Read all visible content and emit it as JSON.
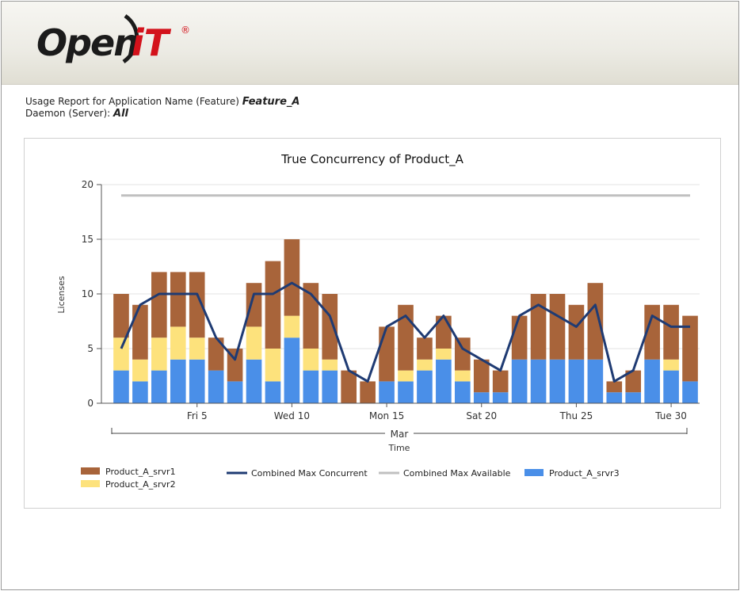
{
  "header": {
    "logo_text_left": "Open",
    "logo_text_right": "iT",
    "logo_mark": "®"
  },
  "report": {
    "usage_label": "Usage Report for Application Name (Feature)",
    "feature_value": "Feature_A",
    "daemon_label": "Daemon (Server):",
    "daemon_value": "All"
  },
  "chart_data": {
    "type": "bar",
    "stacked": true,
    "title": "True Concurrency of Product_A",
    "xlabel": "Time",
    "xlabel_group": "Mar",
    "ylabel": "Licenses",
    "ylim": [
      0,
      20
    ],
    "yticks": [
      0,
      5,
      10,
      15,
      20
    ],
    "grid": true,
    "legend_position": "bottom",
    "x_tick_labels": [
      "Fri 5",
      "Wed 10",
      "Mon 15",
      "Sat 20",
      "Thu 25",
      "Tue 30"
    ],
    "x_tick_positions": [
      4,
      9,
      14,
      19,
      24,
      29
    ],
    "categories": [
      1,
      2,
      3,
      4,
      5,
      6,
      7,
      8,
      9,
      10,
      11,
      12,
      13,
      14,
      15,
      16,
      17,
      18,
      19,
      20,
      21,
      22,
      23,
      24,
      25,
      26,
      27,
      28,
      29,
      30,
      31
    ],
    "series": [
      {
        "name": "Product_A_srvr3",
        "color": "#4a8fe8",
        "kind": "bar",
        "values": [
          3,
          2,
          3,
          4,
          4,
          3,
          2,
          4,
          2,
          6,
          3,
          3,
          0,
          0,
          2,
          2,
          3,
          4,
          2,
          1,
          1,
          4,
          4,
          4,
          4,
          4,
          1,
          1,
          4,
          3,
          2
        ]
      },
      {
        "name": "Product_A_srvr2",
        "color": "#fde27c",
        "kind": "bar",
        "values": [
          3,
          2,
          3,
          3,
          2,
          0,
          0,
          3,
          3,
          2,
          2,
          1,
          0,
          0,
          0,
          1,
          1,
          1,
          1,
          0,
          0,
          0,
          0,
          0,
          0,
          0,
          0,
          0,
          0,
          1,
          0
        ]
      },
      {
        "name": "Product_A_srvr1",
        "color": "#a8643a",
        "kind": "bar",
        "values": [
          4,
          5,
          6,
          5,
          6,
          3,
          3,
          4,
          8,
          7,
          6,
          6,
          3,
          2,
          5,
          6,
          2,
          3,
          3,
          3,
          2,
          4,
          6,
          6,
          5,
          7,
          1,
          2,
          5,
          5,
          6
        ]
      },
      {
        "name": "Combined Max Concurrent",
        "color": "#1f3b73",
        "kind": "line",
        "values": [
          5,
          9,
          10,
          10,
          10,
          6,
          4,
          10,
          10,
          11,
          10,
          8,
          3,
          2,
          7,
          8,
          6,
          8,
          5,
          4,
          3,
          8,
          9,
          8,
          7,
          9,
          2,
          3,
          8,
          7,
          7
        ]
      },
      {
        "name": "Combined Max Available",
        "color": "#c0c0c0",
        "kind": "line",
        "values": [
          19,
          19,
          19,
          19,
          19,
          19,
          19,
          19,
          19,
          19,
          19,
          19,
          19,
          19,
          19,
          19,
          19,
          19,
          19,
          19,
          19,
          19,
          19,
          19,
          19,
          19,
          19,
          19,
          19,
          19,
          19
        ]
      }
    ],
    "legend_order": [
      "Product_A_srvr1",
      "Product_A_srvr2",
      "Combined Max Concurrent",
      "Combined Max Available",
      "Product_A_srvr3"
    ]
  }
}
